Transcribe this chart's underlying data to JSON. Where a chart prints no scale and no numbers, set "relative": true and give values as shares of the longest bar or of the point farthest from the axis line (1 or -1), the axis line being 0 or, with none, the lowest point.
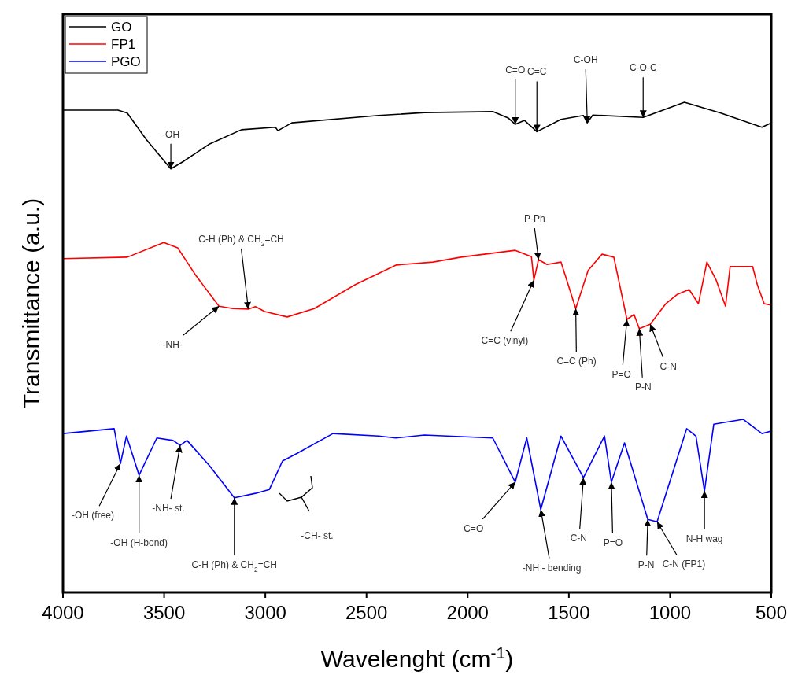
{
  "chart_data": {
    "type": "line",
    "xlabel": "Wavelenght (cm$^{-1}$)",
    "ylabel": "Transmittance (a.u.)",
    "relative": true,
    "xlim": [
      4000,
      500
    ],
    "xticks": [
      4000,
      3500,
      3000,
      2500,
      2000,
      1500,
      1000,
      500
    ],
    "legend": "top left",
    "marker": "none",
    "line_style": "solid",
    "grid": false,
    "series": [
      {
        "name": "GO",
        "color": "#000000",
        "x": [
          4000,
          3728,
          3682,
          3590,
          3467,
          3410,
          3275,
          3118,
          2950,
          2938,
          2869,
          2440,
          2214,
          1876,
          1800,
          1765,
          1719,
          1658,
          1539,
          1428,
          1409,
          1382,
          1133,
          929,
          749,
          546,
          500
        ],
        "values": [
          0.984,
          0.984,
          0.978,
          0.925,
          0.864,
          0.878,
          0.915,
          0.944,
          0.949,
          0.942,
          0.958,
          0.973,
          0.979,
          0.981,
          0.968,
          0.955,
          0.963,
          0.94,
          0.965,
          0.973,
          0.958,
          0.974,
          0.969,
          1.0,
          0.978,
          0.949,
          0.958
        ]
      },
      {
        "name": "FP1",
        "color": "#ff0000",
        "x": [
          4000,
          3682,
          3502,
          3433,
          3344,
          3229,
          3160,
          3084,
          3049,
          3003,
          2892,
          2758,
          2555,
          2352,
          2171,
          2033,
          1765,
          1685,
          1673,
          1650,
          1608,
          1539,
          1466,
          1405,
          1336,
          1278,
          1213,
          1178,
          1152,
          1098,
          1021,
          964,
          906,
          860,
          818,
          772,
          726,
          703,
          592,
          569,
          535,
          500
        ],
        "values": [
          0.681,
          0.684,
          0.714,
          0.703,
          0.647,
          0.584,
          0.579,
          0.578,
          0.583,
          0.573,
          0.562,
          0.579,
          0.628,
          0.668,
          0.674,
          0.684,
          0.698,
          0.685,
          0.637,
          0.679,
          0.669,
          0.674,
          0.579,
          0.657,
          0.69,
          0.684,
          0.557,
          0.567,
          0.538,
          0.547,
          0.589,
          0.608,
          0.618,
          0.589,
          0.674,
          0.637,
          0.584,
          0.665,
          0.665,
          0.628,
          0.589,
          0.586
        ]
      },
      {
        "name": "PGO",
        "color": "#0000ff",
        "x": [
          4000,
          3747,
          3716,
          3686,
          3624,
          3536,
          3456,
          3421,
          3387,
          3275,
          3153,
          3049,
          2980,
          2915,
          2846,
          2666,
          2440,
          2355,
          2214,
          1876,
          1765,
          1708,
          1639,
          1539,
          1428,
          1324,
          1290,
          1225,
          1110,
          1064,
          918,
          872,
          830,
          784,
          638,
          546,
          500
        ],
        "values": [
          0.324,
          0.334,
          0.263,
          0.319,
          0.239,
          0.315,
          0.31,
          0.3,
          0.31,
          0.258,
          0.193,
          0.202,
          0.21,
          0.268,
          0.283,
          0.324,
          0.319,
          0.315,
          0.321,
          0.315,
          0.225,
          0.315,
          0.169,
          0.319,
          0.234,
          0.319,
          0.225,
          0.305,
          0.149,
          0.144,
          0.334,
          0.319,
          0.207,
          0.343,
          0.353,
          0.324,
          0.329
        ]
      }
    ],
    "annotations": [
      {
        "text": "-OH",
        "x": 3467,
        "y": 0.864
      },
      {
        "text": "C=O",
        "x": 1765,
        "y": 0.955
      },
      {
        "text": "C=C",
        "x": 1658,
        "y": 0.94
      },
      {
        "text": "C-OH",
        "x": 1409,
        "y": 0.958
      },
      {
        "text": "C-O-C",
        "x": 1133,
        "y": 0.969
      },
      {
        "text": "C-H (Ph) & CH$_{2}$=CH",
        "x": 3084,
        "y": 0.578
      },
      {
        "text": "-NH-",
        "x": 3229,
        "y": 0.584
      },
      {
        "text": "P-Ph",
        "x": 1650,
        "y": 0.679
      },
      {
        "text": "C=C (vinyl)",
        "x": 1673,
        "y": 0.637
      },
      {
        "text": "C=C (Ph)",
        "x": 1466,
        "y": 0.579
      },
      {
        "text": "P=O",
        "x": 1213,
        "y": 0.557
      },
      {
        "text": "P-N",
        "x": 1152,
        "y": 0.538
      },
      {
        "text": "C-N",
        "x": 1098,
        "y": 0.547
      },
      {
        "text": "-OH (free)",
        "x": 3716,
        "y": 0.263
      },
      {
        "text": "-OH (H-bond)",
        "x": 3624,
        "y": 0.239
      },
      {
        "text": "-NH- st.",
        "x": 3421,
        "y": 0.3
      },
      {
        "text": "C-H (Ph) & CH$_{2}$=CH",
        "x": 3153,
        "y": 0.193
      },
      "-CH- st.",
      {
        "text": "C=O",
        "x": 1765,
        "y": 0.225
      },
      {
        "text": "-NH - bending",
        "x": 1639,
        "y": 0.169
      },
      {
        "text": "C-N",
        "x": 1428,
        "y": 0.234
      },
      {
        "text": "P=O",
        "x": 1290,
        "y": 0.225
      },
      {
        "text": "P-N",
        "x": 1110,
        "y": 0.149
      },
      {
        "text": "C-N (FP1)",
        "x": 1064,
        "y": 0.144
      },
      {
        "text": "N-H wag",
        "x": 830,
        "y": 0.207
      }
    ]
  }
}
